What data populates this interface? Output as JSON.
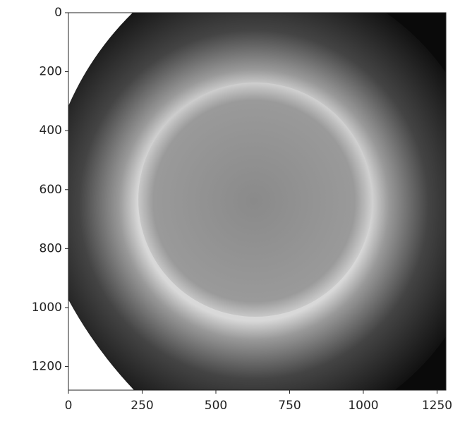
{
  "chart_data": {
    "type": "image",
    "xlim": [
      0,
      1280
    ],
    "ylim": [
      1280,
      0
    ],
    "xticks": [
      0,
      250,
      500,
      750,
      1000,
      1250
    ],
    "yticks": [
      0,
      200,
      400,
      600,
      800,
      1000,
      1200
    ]
  }
}
